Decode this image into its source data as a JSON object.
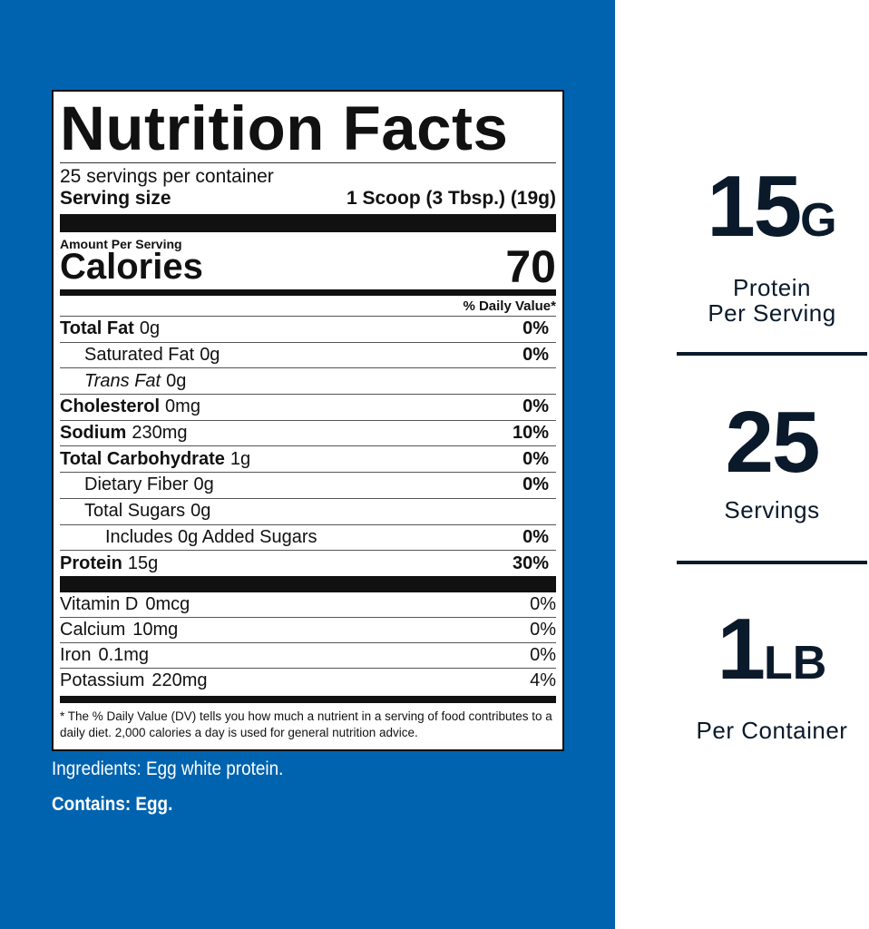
{
  "label": {
    "title": "Nutrition Facts",
    "servings": "25 servings per container",
    "serving_size_label": "Serving size",
    "serving_size": "1 Scoop (3 Tbsp.) (19g)",
    "amount_per_serving": "Amount Per Serving",
    "calories_label": "Calories",
    "calories": 70,
    "daily_value_header": "% Daily Value*",
    "nutrients": [
      {
        "name": "Total Fat",
        "amount": "0g",
        "dv": "0%"
      },
      {
        "name": "Saturated Fat",
        "amount": "0g",
        "dv": "0%"
      },
      {
        "name": "Trans Fat",
        "amount": "0g"
      },
      {
        "name": "Cholesterol",
        "amount": "0mg",
        "dv": "0%"
      },
      {
        "name": "Sodium",
        "amount": "230mg",
        "dv": "10%"
      },
      {
        "name": "Total Carbohydrate",
        "amount": "1g",
        "dv": "0%"
      },
      {
        "name": "Dietary Fiber",
        "amount": "0g",
        "dv": "0%"
      },
      {
        "name": "Total Sugars",
        "amount": "0g"
      },
      {
        "name": "Includes 0g Added Sugars",
        "dv": "0%"
      },
      {
        "name": "Protein",
        "amount": "15g",
        "dv": "30%"
      }
    ],
    "vitamins": [
      {
        "name": "Vitamin D",
        "amount": "0mcg",
        "dv": "0%"
      },
      {
        "name": "Calcium",
        "amount": "10mg",
        "dv": "0%"
      },
      {
        "name": "Iron",
        "amount": "0.1mg",
        "dv": "0%"
      },
      {
        "name": "Potassium",
        "amount": "220mg",
        "dv": "4%"
      }
    ],
    "footnote": "* The % Daily Value (DV) tells you how much a nutrient in a serving of food contributes to a daily diet. 2,000 calories a day is used for general nutrition advice."
  },
  "ingredients": {
    "label": "Ingredients:",
    "text": "Egg white protein."
  },
  "contains": {
    "label": "Contains:",
    "text": "Egg."
  },
  "highlights": [
    {
      "value": 15,
      "unit": "G",
      "caption": [
        "Protein",
        "Per Serving"
      ]
    },
    {
      "value": 25,
      "caption": [
        "Servings"
      ]
    },
    {
      "value": 1,
      "unit": "LB",
      "caption": [
        "Per Container"
      ]
    }
  ]
}
